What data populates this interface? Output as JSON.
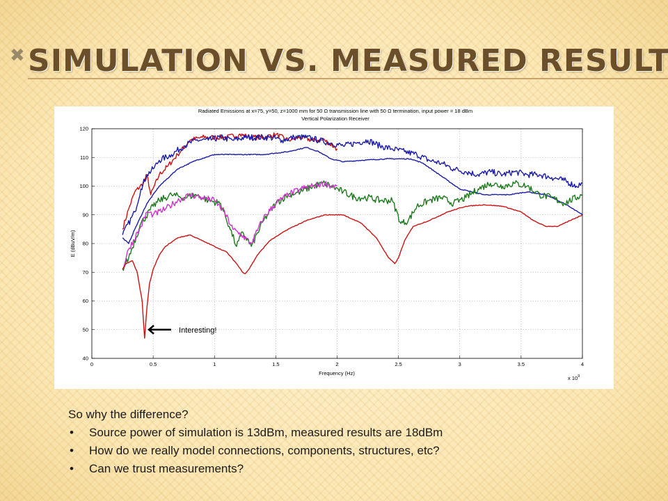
{
  "slide": {
    "title": "Simulation vs. Measured Results",
    "lead": "So why the difference?",
    "bullets": [
      "Source power of simulation is 13dBm, measured results are 18dBm",
      "How do we really model connections, components, structures, etc?",
      "Can we trust measurements?"
    ],
    "bullet_glyph": "•",
    "title_glyph": "✖"
  },
  "chart_data": {
    "type": "line",
    "title": "Radiated Emissions at x=75, y=50, z=1000 mm for 50 Ω transmission line with 50 Ω termination, input power = 18 dBm",
    "subtitle": "Vertical Polarization Receiver",
    "xlabel": "Frequency (Hz)",
    "ylabel": "E (dBuV/m)",
    "x_multiplier": "x 10",
    "x_multiplier_exp": "9",
    "xlim": [
      0,
      4
    ],
    "ylim": [
      40,
      120
    ],
    "xticks": [
      0,
      0.5,
      1,
      1.5,
      2,
      2.5,
      3,
      3.5,
      4
    ],
    "xtick_labels": [
      "0",
      "0.5",
      "1",
      "1.5",
      "2",
      "2.5",
      "3",
      "3.5",
      "4"
    ],
    "yticks": [
      40,
      50,
      60,
      70,
      80,
      90,
      100,
      110,
      120
    ],
    "ytick_labels": [
      "40",
      "50",
      "60",
      "70",
      "80",
      "90",
      "100",
      "110",
      "120"
    ],
    "grid": true,
    "annotation": {
      "text": "Interesting!",
      "x": 0.42,
      "y": 50
    },
    "series": [
      {
        "color": "#cc1111",
        "noise": 0.9,
        "x": [
          0.25,
          0.3,
          0.35,
          0.42,
          0.45,
          0.48,
          0.55,
          0.62,
          0.7,
          0.8,
          0.9,
          1.0,
          1.1,
          1.2,
          1.3,
          1.4,
          1.5,
          1.6,
          1.7,
          1.8,
          1.9,
          2.0
        ],
        "y": [
          85,
          92,
          98,
          101,
          104,
          97,
          104,
          107,
          111,
          116,
          117,
          117,
          117,
          118,
          117,
          117,
          118,
          116,
          117,
          116,
          116,
          113
        ]
      },
      {
        "color": "#1b1baa",
        "noise": 1.1,
        "x": [
          0.25,
          0.35,
          0.4,
          0.45,
          0.5,
          0.55,
          0.65,
          0.75,
          0.85,
          0.95,
          1.05,
          1.15,
          1.25,
          1.35,
          1.45,
          1.55,
          1.65,
          1.75,
          1.85,
          1.95,
          2.05,
          2.15,
          2.25,
          2.35,
          2.45,
          2.55,
          2.65,
          2.75,
          2.85,
          2.95,
          3.05,
          3.15,
          3.25,
          3.35,
          3.45,
          3.55,
          3.65,
          3.75,
          3.85,
          3.95,
          4.0
        ],
        "y": [
          83,
          91,
          99,
          104,
          106,
          109,
          111,
          114,
          116,
          116,
          117,
          116,
          117,
          117,
          117,
          116,
          117,
          117,
          116,
          115,
          114,
          115,
          116,
          114,
          113,
          112,
          111,
          109,
          108,
          106,
          105,
          104,
          105,
          104,
          105,
          104,
          104,
          103,
          102,
          100,
          101
        ]
      },
      {
        "color": "#1b1baa",
        "noise": 0.15,
        "x": [
          0.25,
          0.3,
          0.35,
          0.45,
          0.55,
          0.7,
          0.85,
          1.0,
          1.2,
          1.4,
          1.6,
          1.75,
          1.85,
          1.95,
          2.05,
          2.2,
          2.4,
          2.6,
          2.7,
          2.8,
          2.9,
          3.0,
          3.2,
          3.4,
          3.55,
          3.7,
          3.85,
          4.0
        ],
        "y": [
          82,
          80,
          85,
          94,
          100,
          106,
          109,
          111,
          111,
          111,
          112,
          113.5,
          112,
          109.5,
          108.5,
          109,
          109.5,
          109.5,
          108,
          105,
          102,
          99,
          97,
          97,
          98,
          97,
          94,
          90
        ]
      },
      {
        "color": "#1e7a1e",
        "noise": 1.2,
        "x": [
          0.25,
          0.3,
          0.4,
          0.5,
          0.55,
          0.65,
          0.75,
          0.85,
          0.95,
          1.05,
          1.12,
          1.18,
          1.23,
          1.3,
          1.4,
          1.5,
          1.6,
          1.7,
          1.8,
          1.9,
          1.95,
          2.05,
          2.15,
          2.25,
          2.35,
          2.45,
          2.52,
          2.58,
          2.65,
          2.75,
          2.85,
          2.95,
          3.05,
          3.15,
          3.25,
          3.35,
          3.45,
          3.55,
          3.65,
          3.75,
          3.85,
          4.0
        ],
        "y": [
          71,
          75,
          87,
          93,
          95,
          97,
          96,
          97,
          95,
          94,
          86,
          79,
          84,
          79,
          88,
          94,
          97,
          98,
          100,
          101,
          100,
          98,
          96,
          96,
          95,
          95,
          87,
          88,
          93,
          95,
          96,
          94,
          96,
          99,
          101,
          100,
          101,
          100,
          97,
          96,
          94,
          97
        ]
      },
      {
        "color": "#cc33cc",
        "noise": 1.1,
        "x": [
          0.25,
          0.3,
          0.4,
          0.45,
          0.5,
          0.6,
          0.7,
          0.8,
          0.9,
          1.0,
          1.08,
          1.15,
          1.22,
          1.3,
          1.4,
          1.5,
          1.6,
          1.7,
          1.8,
          1.9,
          1.95,
          2.0
        ],
        "y": [
          71,
          78,
          86,
          91,
          90,
          92,
          95,
          97,
          96,
          95,
          91,
          85,
          83,
          80,
          89,
          94,
          97,
          99,
          100,
          101,
          100,
          100
        ]
      },
      {
        "color": "#cc1111",
        "noise": 0.12,
        "x": [
          0.25,
          0.28,
          0.33,
          0.37,
          0.41,
          0.43,
          0.45,
          0.47,
          0.5,
          0.55,
          0.6,
          0.7,
          0.8,
          0.9,
          1.0,
          1.1,
          1.18,
          1.23,
          1.25,
          1.28,
          1.35,
          1.45,
          1.6,
          1.75,
          1.9,
          2.05,
          2.2,
          2.32,
          2.42,
          2.47,
          2.5,
          2.55,
          2.62,
          2.75,
          2.9,
          3.05,
          3.2,
          3.35,
          3.5,
          3.6,
          3.7,
          3.8,
          3.9,
          4.0
        ],
        "y": [
          71,
          73,
          74,
          70,
          60,
          47,
          58,
          66,
          71,
          76,
          79,
          82,
          83,
          81,
          79,
          77,
          73,
          70,
          69.5,
          71,
          76,
          81,
          85,
          88,
          90,
          90,
          87,
          82,
          75,
          73,
          75,
          81,
          86,
          88,
          91,
          93,
          93.5,
          93,
          91,
          88,
          86,
          86,
          88,
          90
        ]
      }
    ]
  }
}
